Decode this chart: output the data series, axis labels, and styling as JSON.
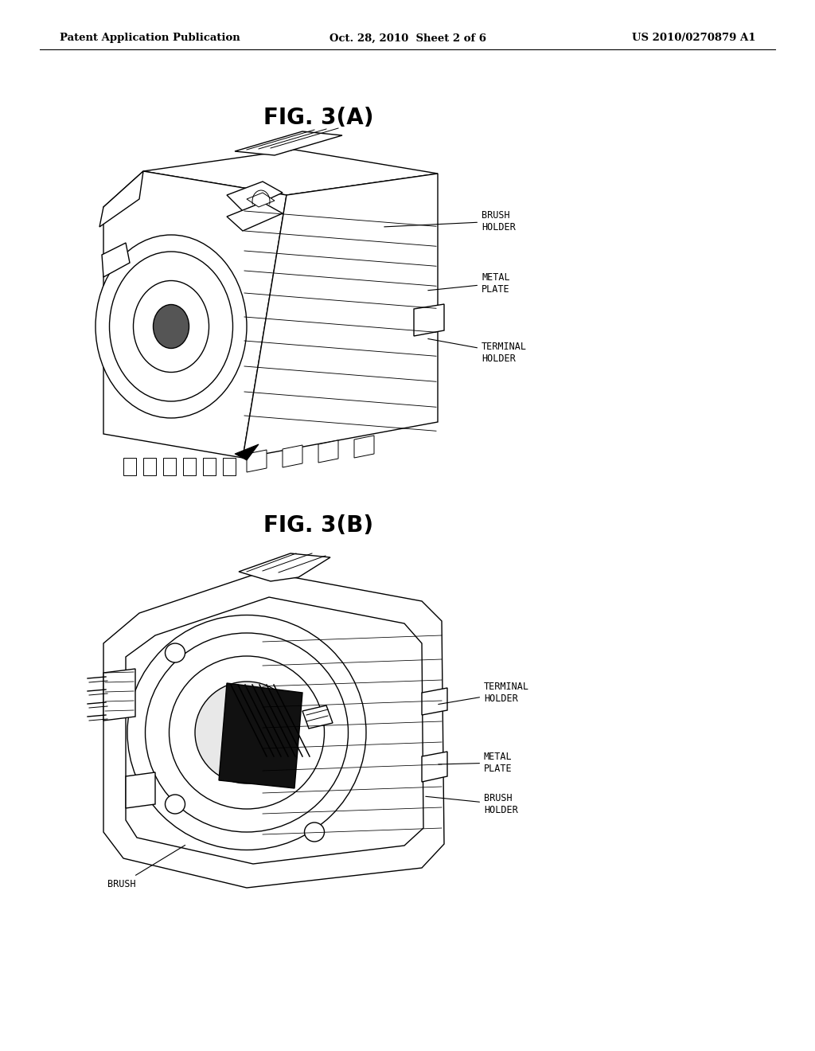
{
  "background_color": "#ffffff",
  "header_left": "Patent Application Publication",
  "header_center": "Oct. 28, 2010  Sheet 2 of 6",
  "header_right": "US 2010/0270879 A1",
  "fig_a_title": "FIG. 3(A)",
  "fig_b_title": "FIG. 3(B)",
  "font_size_header": 9,
  "font_size_fig_title": 18,
  "font_size_label": 8,
  "text_color": "#000000",
  "line_color": "#000000"
}
